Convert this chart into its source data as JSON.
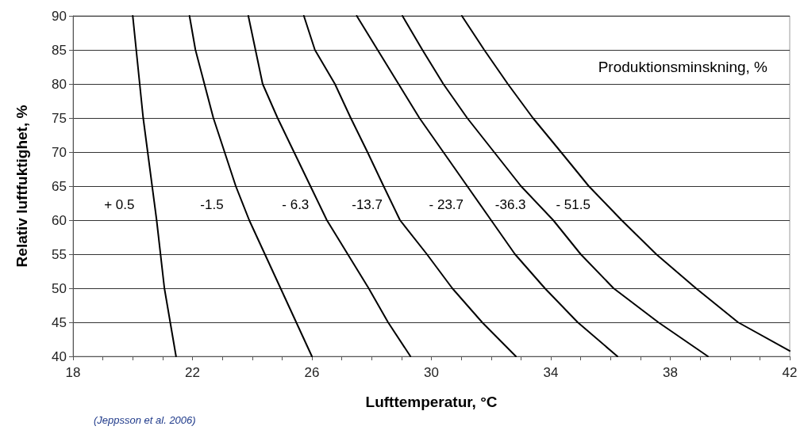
{
  "chart_data": {
    "type": "line",
    "xlabel": "Lufttemperatur, °C",
    "ylabel": "Relativ luftfuktighet, %",
    "xlim": [
      18,
      42
    ],
    "xticks": [
      18,
      {
        "value": 19,
        "label": null
      },
      {
        "value": 20,
        "label": null
      },
      {
        "value": 21,
        "label": null
      },
      22,
      {
        "value": 23,
        "label": null
      },
      {
        "value": 24,
        "label": null
      },
      {
        "value": 25,
        "label": null
      },
      26,
      {
        "value": 27,
        "label": null
      },
      {
        "value": 28,
        "label": null
      },
      {
        "value": 29,
        "label": null
      },
      30,
      {
        "value": 31,
        "label": null
      },
      {
        "value": 32,
        "label": null
      },
      {
        "value": 33,
        "label": null
      },
      34,
      {
        "value": 35,
        "label": null
      },
      {
        "value": 36,
        "label": null
      },
      {
        "value": 37,
        "label": null
      },
      38,
      {
        "value": 39,
        "label": null
      },
      {
        "value": 40,
        "label": null
      },
      {
        "value": 41,
        "label": null
      },
      42
    ],
    "ylim": [
      40,
      90
    ],
    "yticks": [
      40,
      45,
      50,
      55,
      60,
      65,
      70,
      75,
      80,
      85,
      90
    ],
    "grid": "y",
    "marker": "none",
    "line_style": "solid",
    "series": [
      {
        "color": "#000000",
        "x": [
          20.0,
          20.35,
          20.8,
          21.06,
          21.45
        ],
        "values": [
          90,
          75,
          60,
          50,
          40
        ]
      },
      {
        "color": "#000000",
        "x": [
          21.9,
          22.1,
          22.7,
          23.45,
          23.9,
          24.95,
          26.0
        ],
        "values": [
          90,
          85,
          75,
          65,
          60,
          50,
          40
        ]
      },
      {
        "color": "#000000",
        "x": [
          23.87,
          24.35,
          24.85,
          25.4,
          25.95,
          26.5,
          27.2,
          27.9,
          28.55,
          29.3
        ],
        "values": [
          90,
          80,
          75,
          70,
          65,
          60,
          55,
          50,
          45,
          40
        ]
      },
      {
        "color": "#000000",
        "x": [
          25.73,
          26.1,
          26.77,
          27.3,
          27.86,
          28.4,
          28.95,
          29.85,
          30.7,
          31.7,
          32.83
        ],
        "values": [
          90,
          85,
          80,
          75,
          70,
          65,
          60,
          55,
          50,
          45,
          40
        ]
      },
      {
        "color": "#000000",
        "x": [
          27.5,
          28.2,
          28.9,
          29.6,
          30.4,
          31.2,
          32.0,
          32.8,
          33.8,
          34.9,
          36.23
        ],
        "values": [
          90,
          85,
          80,
          75,
          70,
          65,
          60,
          55,
          50,
          45,
          40
        ]
      },
      {
        "color": "#000000",
        "x": [
          29.03,
          29.7,
          30.4,
          31.2,
          32.1,
          33.0,
          34.08,
          35.0,
          36.1,
          37.6,
          39.26
        ],
        "values": [
          90,
          85,
          80,
          75,
          70,
          65,
          60,
          55,
          50,
          45,
          40
        ]
      },
      {
        "color": "#000000",
        "x": [
          31.02,
          31.77,
          32.56,
          33.4,
          34.34,
          35.27,
          36.37,
          37.53,
          38.86,
          40.27,
          42.0
        ],
        "values": [
          90,
          85,
          80,
          75,
          70,
          65,
          60,
          55,
          50,
          45,
          40.8
        ]
      }
    ],
    "annotations": [
      {
        "text": "+ 0.5",
        "x": 19.55,
        "y": 62.3
      },
      {
        "text": "-1.5",
        "x": 22.65,
        "y": 62.3
      },
      {
        "text": "- 6.3",
        "x": 25.45,
        "y": 62.3
      },
      {
        "text": "-13.7",
        "x": 27.85,
        "y": 62.3
      },
      {
        "text": "- 23.7",
        "x": 30.5,
        "y": 62.3
      },
      {
        "text": "-36.3",
        "x": 32.65,
        "y": 62.3
      },
      {
        "text": "- 51.5",
        "x": 34.75,
        "y": 62.3
      },
      "Produktionsminskning, %",
      "(Jeppsson et al. 2006)"
    ]
  }
}
